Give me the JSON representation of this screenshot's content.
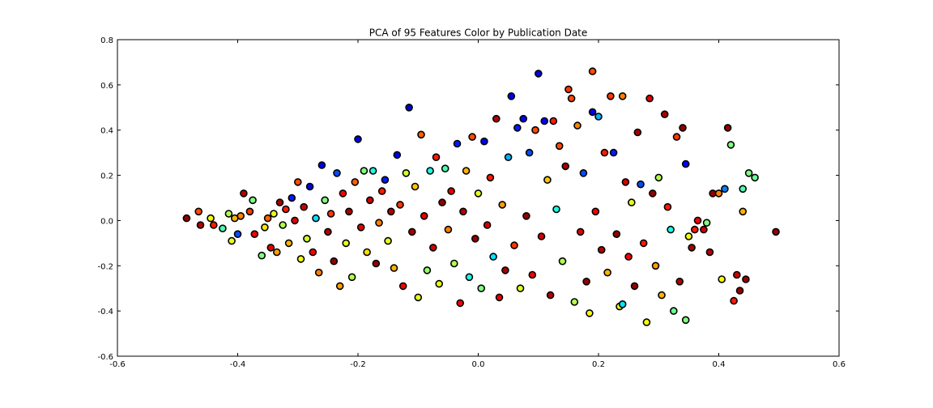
{
  "chart_data": {
    "type": "scatter",
    "title": "PCA of 95 Features Color by Publication Date",
    "xlabel": "",
    "ylabel": "",
    "xlim": [
      -0.6,
      0.6
    ],
    "ylim": [
      -0.6,
      0.8
    ],
    "xticks": [
      "-0.6",
      "-0.4",
      "-0.2",
      "0.0",
      "0.2",
      "0.4",
      "0.6"
    ],
    "yticks": [
      "-0.6",
      "-0.4",
      "-0.2",
      "0.0",
      "0.2",
      "0.4",
      "0.6",
      "0.8"
    ],
    "grid": false,
    "legend": "none",
    "colormap": "jet",
    "points": [
      {
        "x": -0.485,
        "y": 0.01,
        "c": 0.98
      },
      {
        "x": -0.465,
        "y": 0.04,
        "c": 0.8
      },
      {
        "x": -0.462,
        "y": -0.02,
        "c": 0.95
      },
      {
        "x": -0.445,
        "y": 0.01,
        "c": 0.62
      },
      {
        "x": -0.44,
        "y": -0.02,
        "c": 0.85
      },
      {
        "x": -0.425,
        "y": -0.035,
        "c": 0.45
      },
      {
        "x": -0.415,
        "y": 0.03,
        "c": 0.55
      },
      {
        "x": -0.41,
        "y": -0.09,
        "c": 0.6
      },
      {
        "x": -0.405,
        "y": 0.01,
        "c": 0.7
      },
      {
        "x": -0.4,
        "y": -0.06,
        "c": 0.2
      },
      {
        "x": -0.395,
        "y": 0.02,
        "c": 0.75
      },
      {
        "x": -0.39,
        "y": 0.12,
        "c": 0.95
      },
      {
        "x": -0.38,
        "y": 0.04,
        "c": 0.82
      },
      {
        "x": -0.375,
        "y": 0.09,
        "c": 0.5
      },
      {
        "x": -0.372,
        "y": -0.06,
        "c": 0.88
      },
      {
        "x": -0.36,
        "y": -0.155,
        "c": 0.5
      },
      {
        "x": -0.355,
        "y": -0.03,
        "c": 0.65
      },
      {
        "x": -0.35,
        "y": 0.01,
        "c": 0.78
      },
      {
        "x": -0.345,
        "y": -0.12,
        "c": 0.9
      },
      {
        "x": -0.34,
        "y": 0.03,
        "c": 0.6
      },
      {
        "x": -0.335,
        "y": -0.14,
        "c": 0.72
      },
      {
        "x": -0.33,
        "y": 0.08,
        "c": 0.96
      },
      {
        "x": -0.325,
        "y": -0.02,
        "c": 0.55
      },
      {
        "x": -0.32,
        "y": 0.05,
        "c": 0.85
      },
      {
        "x": -0.315,
        "y": -0.1,
        "c": 0.7
      },
      {
        "x": -0.31,
        "y": 0.1,
        "c": 0.15
      },
      {
        "x": -0.305,
        "y": 0.0,
        "c": 0.9
      },
      {
        "x": -0.3,
        "y": 0.17,
        "c": 0.8
      },
      {
        "x": -0.295,
        "y": -0.17,
        "c": 0.62
      },
      {
        "x": -0.29,
        "y": 0.06,
        "c": 0.92
      },
      {
        "x": -0.285,
        "y": -0.08,
        "c": 0.58
      },
      {
        "x": -0.28,
        "y": 0.15,
        "c": 0.1
      },
      {
        "x": -0.275,
        "y": -0.14,
        "c": 0.88
      },
      {
        "x": -0.27,
        "y": 0.01,
        "c": 0.35
      },
      {
        "x": -0.265,
        "y": -0.23,
        "c": 0.75
      },
      {
        "x": -0.26,
        "y": 0.245,
        "c": 0.1
      },
      {
        "x": -0.255,
        "y": 0.09,
        "c": 0.5
      },
      {
        "x": -0.25,
        "y": -0.05,
        "c": 0.95
      },
      {
        "x": -0.245,
        "y": 0.03,
        "c": 0.82
      },
      {
        "x": -0.24,
        "y": -0.18,
        "c": 0.98
      },
      {
        "x": -0.235,
        "y": 0.21,
        "c": 0.2
      },
      {
        "x": -0.23,
        "y": -0.29,
        "c": 0.72
      },
      {
        "x": -0.225,
        "y": 0.12,
        "c": 0.88
      },
      {
        "x": -0.22,
        "y": -0.1,
        "c": 0.6
      },
      {
        "x": -0.215,
        "y": 0.04,
        "c": 0.96
      },
      {
        "x": -0.21,
        "y": -0.25,
        "c": 0.55
      },
      {
        "x": -0.205,
        "y": 0.17,
        "c": 0.78
      },
      {
        "x": -0.2,
        "y": 0.36,
        "c": 0.1
      },
      {
        "x": -0.195,
        "y": -0.03,
        "c": 0.9
      },
      {
        "x": -0.19,
        "y": 0.22,
        "c": 0.5
      },
      {
        "x": -0.185,
        "y": -0.14,
        "c": 0.66
      },
      {
        "x": -0.18,
        "y": 0.09,
        "c": 0.92
      },
      {
        "x": -0.175,
        "y": 0.22,
        "c": 0.4
      },
      {
        "x": -0.17,
        "y": -0.19,
        "c": 0.98
      },
      {
        "x": -0.165,
        "y": -0.01,
        "c": 0.75
      },
      {
        "x": -0.16,
        "y": 0.13,
        "c": 0.85
      },
      {
        "x": -0.155,
        "y": 0.18,
        "c": 0.15
      },
      {
        "x": -0.15,
        "y": -0.09,
        "c": 0.6
      },
      {
        "x": -0.145,
        "y": 0.04,
        "c": 0.95
      },
      {
        "x": -0.14,
        "y": -0.21,
        "c": 0.7
      },
      {
        "x": -0.135,
        "y": 0.29,
        "c": 0.1
      },
      {
        "x": -0.13,
        "y": 0.07,
        "c": 0.82
      },
      {
        "x": -0.125,
        "y": -0.29,
        "c": 0.88
      },
      {
        "x": -0.12,
        "y": 0.21,
        "c": 0.58
      },
      {
        "x": -0.115,
        "y": 0.5,
        "c": 0.08
      },
      {
        "x": -0.11,
        "y": -0.05,
        "c": 0.96
      },
      {
        "x": -0.105,
        "y": 0.15,
        "c": 0.68
      },
      {
        "x": -0.1,
        "y": -0.34,
        "c": 0.6
      },
      {
        "x": -0.095,
        "y": 0.38,
        "c": 0.78
      },
      {
        "x": -0.09,
        "y": 0.02,
        "c": 0.9
      },
      {
        "x": -0.085,
        "y": -0.22,
        "c": 0.52
      },
      {
        "x": -0.08,
        "y": 0.22,
        "c": 0.4
      },
      {
        "x": -0.075,
        "y": -0.12,
        "c": 0.92
      },
      {
        "x": -0.07,
        "y": 0.28,
        "c": 0.85
      },
      {
        "x": -0.065,
        "y": -0.28,
        "c": 0.6
      },
      {
        "x": -0.06,
        "y": 0.08,
        "c": 0.98
      },
      {
        "x": -0.055,
        "y": 0.23,
        "c": 0.45
      },
      {
        "x": -0.05,
        "y": -0.04,
        "c": 0.75
      },
      {
        "x": -0.045,
        "y": 0.13,
        "c": 0.9
      },
      {
        "x": -0.04,
        "y": -0.19,
        "c": 0.55
      },
      {
        "x": -0.035,
        "y": 0.34,
        "c": 0.15
      },
      {
        "x": -0.03,
        "y": -0.365,
        "c": 0.88
      },
      {
        "x": -0.025,
        "y": 0.04,
        "c": 0.95
      },
      {
        "x": -0.02,
        "y": 0.22,
        "c": 0.7
      },
      {
        "x": -0.015,
        "y": -0.25,
        "c": 0.4
      },
      {
        "x": -0.01,
        "y": 0.37,
        "c": 0.8
      },
      {
        "x": -0.005,
        "y": -0.08,
        "c": 0.98
      },
      {
        "x": 0.0,
        "y": 0.12,
        "c": 0.6
      },
      {
        "x": 0.005,
        "y": -0.3,
        "c": 0.5
      },
      {
        "x": 0.01,
        "y": 0.35,
        "c": 0.12
      },
      {
        "x": 0.015,
        "y": -0.02,
        "c": 0.92
      },
      {
        "x": 0.02,
        "y": 0.19,
        "c": 0.85
      },
      {
        "x": 0.025,
        "y": -0.16,
        "c": 0.35
      },
      {
        "x": 0.03,
        "y": 0.45,
        "c": 0.95
      },
      {
        "x": 0.035,
        "y": -0.34,
        "c": 0.9
      },
      {
        "x": 0.04,
        "y": 0.07,
        "c": 0.72
      },
      {
        "x": 0.045,
        "y": -0.22,
        "c": 0.96
      },
      {
        "x": 0.05,
        "y": 0.28,
        "c": 0.3
      },
      {
        "x": 0.055,
        "y": 0.55,
        "c": 0.1
      },
      {
        "x": 0.06,
        "y": -0.11,
        "c": 0.82
      },
      {
        "x": 0.065,
        "y": 0.41,
        "c": 0.15
      },
      {
        "x": 0.07,
        "y": -0.3,
        "c": 0.6
      },
      {
        "x": 0.075,
        "y": 0.45,
        "c": 0.12
      },
      {
        "x": 0.08,
        "y": 0.02,
        "c": 0.98
      },
      {
        "x": 0.085,
        "y": 0.3,
        "c": 0.2
      },
      {
        "x": 0.09,
        "y": -0.24,
        "c": 0.88
      },
      {
        "x": 0.095,
        "y": 0.4,
        "c": 0.8
      },
      {
        "x": 0.1,
        "y": 0.65,
        "c": 0.1
      },
      {
        "x": 0.105,
        "y": -0.07,
        "c": 0.92
      },
      {
        "x": 0.11,
        "y": 0.44,
        "c": 0.12
      },
      {
        "x": 0.115,
        "y": 0.18,
        "c": 0.68
      },
      {
        "x": 0.12,
        "y": -0.33,
        "c": 0.95
      },
      {
        "x": 0.125,
        "y": 0.44,
        "c": 0.85
      },
      {
        "x": 0.13,
        "y": 0.05,
        "c": 0.4
      },
      {
        "x": 0.135,
        "y": 0.33,
        "c": 0.8
      },
      {
        "x": 0.14,
        "y": -0.18,
        "c": 0.55
      },
      {
        "x": 0.145,
        "y": 0.24,
        "c": 0.96
      },
      {
        "x": 0.15,
        "y": 0.58,
        "c": 0.82
      },
      {
        "x": 0.155,
        "y": 0.54,
        "c": 0.8
      },
      {
        "x": 0.16,
        "y": -0.36,
        "c": 0.55
      },
      {
        "x": 0.165,
        "y": 0.42,
        "c": 0.75
      },
      {
        "x": 0.17,
        "y": -0.05,
        "c": 0.9
      },
      {
        "x": 0.175,
        "y": 0.21,
        "c": 0.2
      },
      {
        "x": 0.18,
        "y": -0.27,
        "c": 0.98
      },
      {
        "x": 0.185,
        "y": -0.41,
        "c": 0.62
      },
      {
        "x": 0.19,
        "y": 0.66,
        "c": 0.8
      },
      {
        "x": 0.19,
        "y": 0.48,
        "c": 0.12
      },
      {
        "x": 0.195,
        "y": 0.04,
        "c": 0.88
      },
      {
        "x": 0.2,
        "y": 0.46,
        "c": 0.3
      },
      {
        "x": 0.205,
        "y": -0.13,
        "c": 0.95
      },
      {
        "x": 0.21,
        "y": 0.3,
        "c": 0.85
      },
      {
        "x": 0.215,
        "y": -0.23,
        "c": 0.7
      },
      {
        "x": 0.22,
        "y": 0.55,
        "c": 0.82
      },
      {
        "x": 0.225,
        "y": 0.3,
        "c": 0.15
      },
      {
        "x": 0.23,
        "y": -0.06,
        "c": 0.98
      },
      {
        "x": 0.235,
        "y": -0.38,
        "c": 0.6
      },
      {
        "x": 0.24,
        "y": 0.55,
        "c": 0.75
      },
      {
        "x": 0.24,
        "y": -0.37,
        "c": 0.35
      },
      {
        "x": 0.245,
        "y": 0.17,
        "c": 0.92
      },
      {
        "x": 0.25,
        "y": -0.16,
        "c": 0.88
      },
      {
        "x": 0.255,
        "y": 0.08,
        "c": 0.6
      },
      {
        "x": 0.26,
        "y": -0.29,
        "c": 0.98
      },
      {
        "x": 0.265,
        "y": 0.39,
        "c": 0.96
      },
      {
        "x": 0.27,
        "y": 0.16,
        "c": 0.2
      },
      {
        "x": 0.275,
        "y": -0.1,
        "c": 0.85
      },
      {
        "x": 0.28,
        "y": -0.45,
        "c": 0.62
      },
      {
        "x": 0.285,
        "y": 0.54,
        "c": 0.9
      },
      {
        "x": 0.29,
        "y": 0.12,
        "c": 0.98
      },
      {
        "x": 0.295,
        "y": -0.2,
        "c": 0.72
      },
      {
        "x": 0.3,
        "y": 0.19,
        "c": 0.55
      },
      {
        "x": 0.305,
        "y": -0.33,
        "c": 0.7
      },
      {
        "x": 0.31,
        "y": 0.47,
        "c": 0.96
      },
      {
        "x": 0.315,
        "y": 0.06,
        "c": 0.85
      },
      {
        "x": 0.32,
        "y": -0.04,
        "c": 0.4
      },
      {
        "x": 0.325,
        "y": -0.4,
        "c": 0.48
      },
      {
        "x": 0.33,
        "y": 0.37,
        "c": 0.82
      },
      {
        "x": 0.335,
        "y": -0.27,
        "c": 0.95
      },
      {
        "x": 0.34,
        "y": 0.41,
        "c": 0.98
      },
      {
        "x": 0.345,
        "y": 0.25,
        "c": 0.12
      },
      {
        "x": 0.345,
        "y": -0.44,
        "c": 0.5
      },
      {
        "x": 0.35,
        "y": -0.07,
        "c": 0.62
      },
      {
        "x": 0.355,
        "y": -0.12,
        "c": 0.96
      },
      {
        "x": 0.36,
        "y": -0.04,
        "c": 0.85
      },
      {
        "x": 0.365,
        "y": 0.0,
        "c": 0.88
      },
      {
        "x": 0.375,
        "y": -0.04,
        "c": 0.92
      },
      {
        "x": 0.38,
        "y": -0.01,
        "c": 0.5
      },
      {
        "x": 0.385,
        "y": -0.14,
        "c": 0.95
      },
      {
        "x": 0.39,
        "y": 0.12,
        "c": 0.98
      },
      {
        "x": 0.4,
        "y": 0.12,
        "c": 0.75
      },
      {
        "x": 0.405,
        "y": -0.26,
        "c": 0.62
      },
      {
        "x": 0.41,
        "y": 0.14,
        "c": 0.25
      },
      {
        "x": 0.415,
        "y": 0.41,
        "c": 0.98
      },
      {
        "x": 0.42,
        "y": 0.335,
        "c": 0.5
      },
      {
        "x": 0.425,
        "y": -0.355,
        "c": 0.85
      },
      {
        "x": 0.43,
        "y": -0.24,
        "c": 0.92
      },
      {
        "x": 0.435,
        "y": -0.31,
        "c": 0.98
      },
      {
        "x": 0.44,
        "y": 0.04,
        "c": 0.7
      },
      {
        "x": 0.44,
        "y": 0.14,
        "c": 0.45
      },
      {
        "x": 0.445,
        "y": -0.26,
        "c": 0.98
      },
      {
        "x": 0.45,
        "y": 0.21,
        "c": 0.5
      },
      {
        "x": 0.46,
        "y": 0.19,
        "c": 0.48
      },
      {
        "x": 0.495,
        "y": -0.05,
        "c": 0.98
      }
    ]
  }
}
